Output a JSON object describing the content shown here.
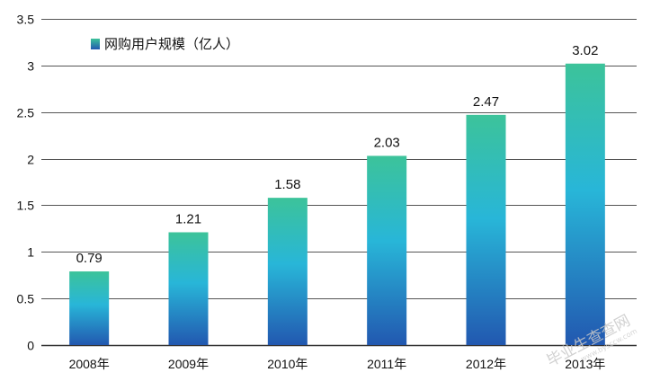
{
  "chart_data": {
    "type": "bar",
    "title": "",
    "xlabel": "",
    "ylabel": "",
    "categories": [
      "2008年",
      "2009年",
      "2010年",
      "2011年",
      "2012年",
      "2013年"
    ],
    "series": [
      {
        "name": "网购用户规模（亿人）",
        "values": [
          0.79,
          1.21,
          1.58,
          2.03,
          2.47,
          3.02
        ]
      }
    ],
    "data_labels": [
      "0.79",
      "1.21",
      "1.58",
      "2.03",
      "2.47",
      "3.02"
    ],
    "ylim": [
      0,
      3.5
    ],
    "yticks": [
      0,
      0.5,
      1,
      1.5,
      2,
      2.5,
      3,
      3.5
    ],
    "ytick_labels": [
      "0",
      "0.5",
      "1",
      "1.5",
      "2",
      "2.5",
      "3",
      "3.5"
    ],
    "grid": true,
    "legend_position": "top-left",
    "colors": {
      "bar_top": "#3cc39a",
      "bar_mid": "#28b6d8",
      "bar_bottom": "#2258b0",
      "grid": "#555555",
      "axis": "#333333"
    }
  },
  "watermark": {
    "text": "毕业生查查网",
    "url": "www.bysccw.com"
  }
}
